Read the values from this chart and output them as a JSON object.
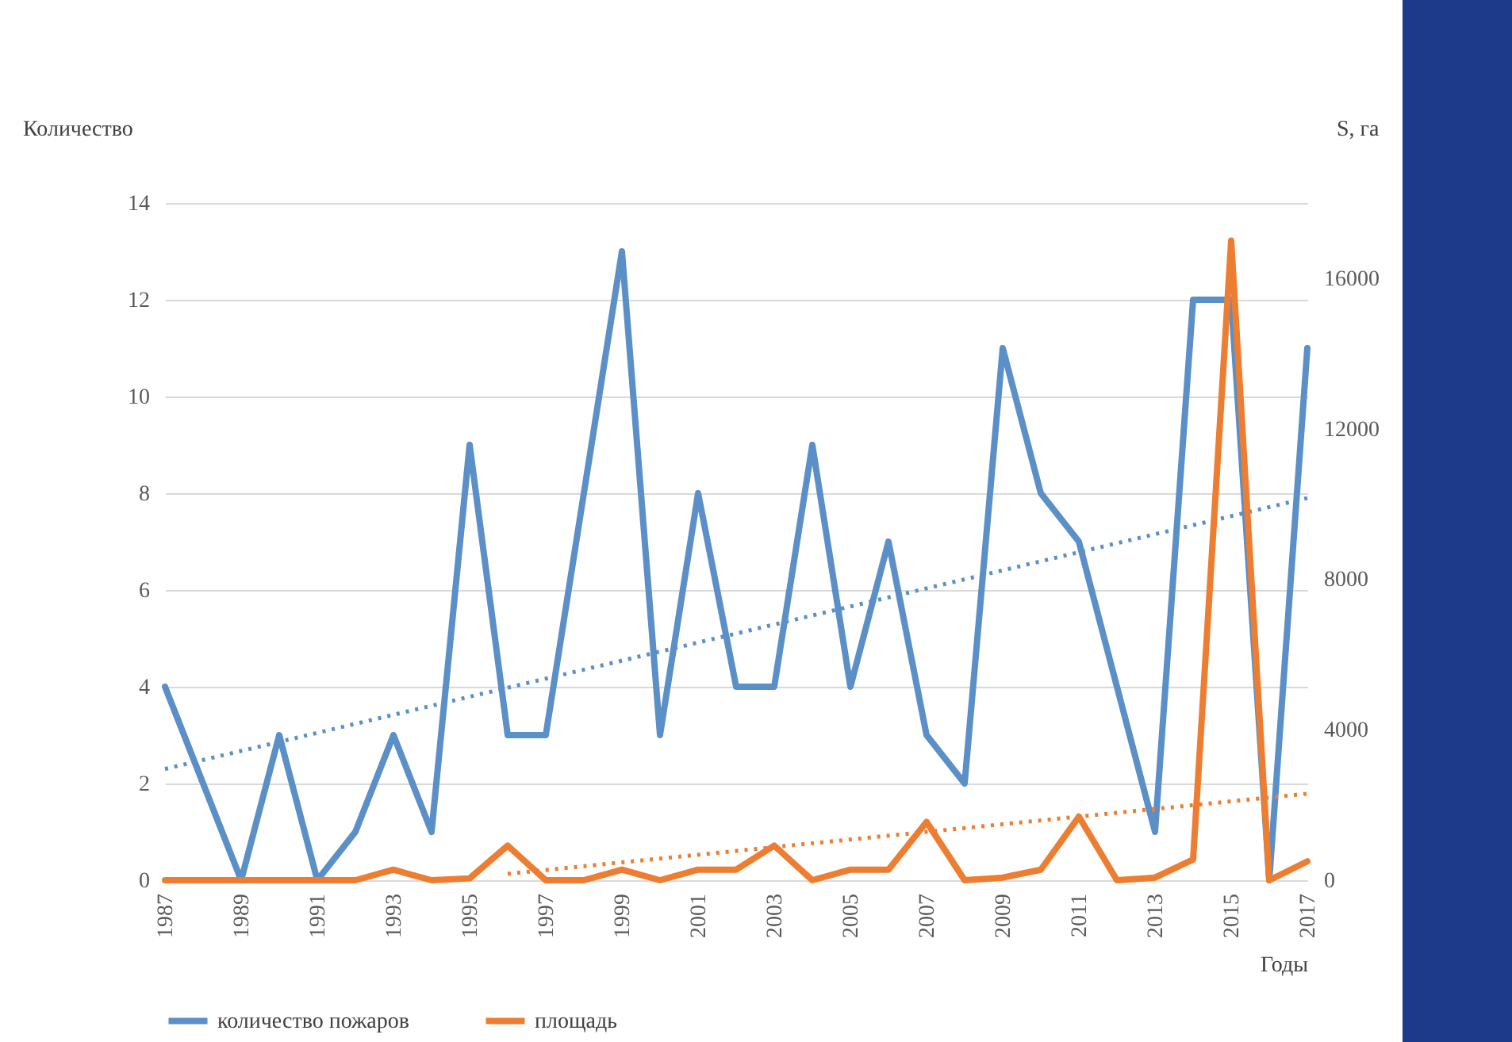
{
  "chart_data": {
    "type": "line",
    "ylabel": "Количество",
    "y2label": "S, га",
    "xlabel": "Годы",
    "x": [
      1987,
      1988,
      1989,
      1990,
      1991,
      1992,
      1993,
      1994,
      1995,
      1996,
      1997,
      1998,
      1999,
      2000,
      2001,
      2002,
      2003,
      2004,
      2005,
      2006,
      2007,
      2008,
      2009,
      2010,
      2011,
      2012,
      2013,
      2014,
      2015,
      2016,
      2017
    ],
    "series": [
      {
        "name": "количество пожаров",
        "color": "#5b8fc7",
        "axis": "y",
        "values": [
          4,
          2,
          0,
          3,
          0,
          1,
          3,
          1,
          9,
          3,
          3,
          8,
          13,
          3,
          8,
          4,
          4,
          9,
          4,
          7,
          3,
          2,
          11,
          8,
          7,
          4,
          1,
          12,
          12,
          0,
          11
        ]
      },
      {
        "name": "площадь",
        "color": "#ed7d31",
        "axis": "y2",
        "values": [
          0,
          0,
          0,
          0,
          0,
          0,
          280,
          0,
          50,
          920,
          0,
          0,
          280,
          0,
          280,
          280,
          920,
          0,
          280,
          280,
          1550,
          0,
          70,
          280,
          1690,
          0,
          70,
          550,
          17000,
          0,
          500
        ]
      },
      {
        "type": "line",
        "color": "#5b8fc7",
        "axis": "y",
        "line_style": "dotted",
        "x": [
          1987,
          2017
        ],
        "values": [
          2.3,
          7.9
        ]
      },
      {
        "type": "line",
        "color": "#ed7d31",
        "axis": "y2",
        "line_style": "dotted",
        "x": [
          1996,
          2017
        ],
        "values": [
          170,
          2300
        ]
      }
    ],
    "xlim": [
      1987,
      2017
    ],
    "xticks": [
      1987,
      1989,
      1991,
      1993,
      1995,
      1997,
      1999,
      2001,
      2003,
      2005,
      2007,
      2009,
      2011,
      2013,
      2015,
      2017
    ],
    "ylim": [
      0,
      14
    ],
    "yticks": [
      0,
      2,
      4,
      6,
      8,
      10,
      12,
      14
    ],
    "y2lim": [
      0,
      18000
    ],
    "y2ticks": [
      0,
      4000,
      8000,
      12000,
      16000
    ],
    "grid": "y",
    "legend": "bottom",
    "marker": "none",
    "line_style": "solid"
  }
}
